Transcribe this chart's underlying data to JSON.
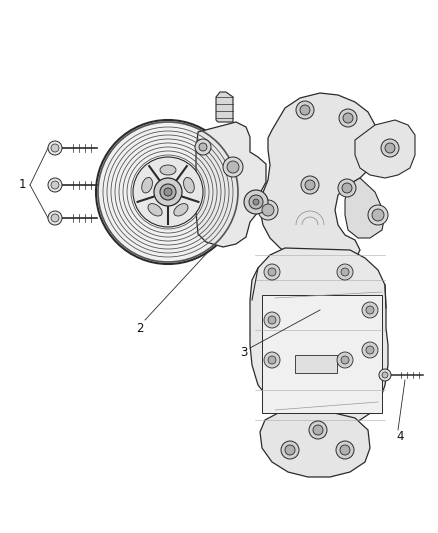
{
  "background_color": "#ffffff",
  "fig_width": 4.38,
  "fig_height": 5.33,
  "dpi": 100,
  "line_color": "#2a2a2a",
  "light_gray": "#d8d8d8",
  "mid_gray": "#b0b0b0",
  "dark_gray": "#707070",
  "label_fontsize": 8.5,
  "label_color": "#111111"
}
